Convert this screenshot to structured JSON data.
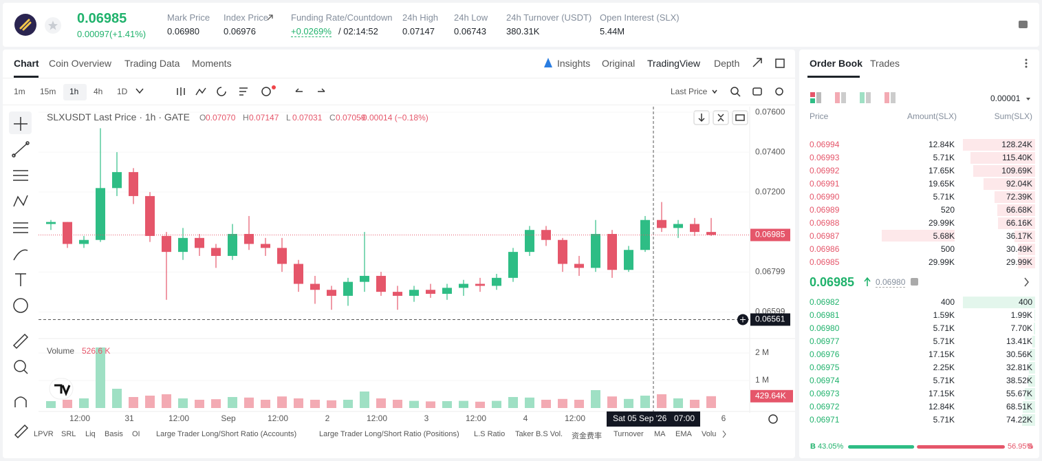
{
  "header": {
    "price": "0.06985",
    "change": "0.00097(+1.41%)",
    "stats": [
      {
        "label": "Mark Price",
        "value": "0.06980"
      },
      {
        "label": "Index Price",
        "value": "0.06976"
      },
      {
        "label": "Funding Rate/Countdown",
        "value": "+0.0269%",
        "extra": "/ 02:14:52"
      },
      {
        "label": "24h High",
        "value": "0.07147"
      },
      {
        "label": "24h Low",
        "value": "0.06743"
      },
      {
        "label": "24h Turnover (USDT)",
        "value": "380.31K"
      },
      {
        "label": "Open Interest (SLX)",
        "value": "5.44M"
      }
    ]
  },
  "tabs": [
    "Chart",
    "Coin Overview",
    "Trading Data",
    "Moments"
  ],
  "view_tabs": [
    "Insights",
    "Original",
    "TradingView",
    "Depth"
  ],
  "intervals": [
    "1m",
    "15m",
    "1h",
    "4h",
    "1D"
  ],
  "price_type": "Last Price",
  "legend": {
    "title": "SLXUSDT Last Price · 1h · GATE",
    "ohlc": [
      {
        "k": "O",
        "v": "0.07070"
      },
      {
        "k": "H",
        "v": "0.07147"
      },
      {
        "k": "L",
        "v": "0.07031"
      },
      {
        "k": "C",
        "v": "0.07059"
      }
    ],
    "change": "-0.00014 (−0.18%)",
    "volume_title": "Volume",
    "volume_value": "526.6 K"
  },
  "indicators": [
    "LPVR",
    "SRL",
    "Liq",
    "Basis",
    "OI",
    "Large Trader Long/Short Ratio (Accounts)",
    "Large Trader Long/Short Ratio (Positions)",
    "L.S Ratio",
    "Taker B.S Vol.",
    "资金费率",
    "Turnover",
    "MA",
    "EMA",
    "Volu"
  ],
  "chart_data": {
    "type": "candlestick",
    "up_color": "#2ebd85",
    "down_color": "#e5566a",
    "up_volume_color": "#9fe0c4",
    "down_volume_color": "#f3aab3",
    "open": [
      0.0704,
      0.0705,
      0.0694,
      0.0696,
      0.0722,
      0.073,
      0.0718,
      0.0698,
      0.069,
      0.0697,
      0.0692,
      0.0688,
      0.0699,
      0.0694,
      0.0692,
      0.0684,
      0.0674,
      0.0671,
      0.0668,
      0.0675,
      0.0678,
      0.067,
      0.0668,
      0.0671,
      0.0669,
      0.0672,
      0.0674,
      0.0673,
      0.0677,
      0.069,
      0.0701,
      0.0696,
      0.0684,
      0.0682,
      0.0699,
      0.0681,
      0.0691,
      0.0706,
      0.0702,
      0.0704,
      0.07
    ],
    "high": [
      0.0706,
      0.0705,
      0.0698,
      0.0752,
      0.074,
      0.0732,
      0.072,
      0.07,
      0.0702,
      0.0699,
      0.0694,
      0.0704,
      0.0708,
      0.0697,
      0.0697,
      0.0686,
      0.0678,
      0.0673,
      0.0677,
      0.07,
      0.068,
      0.0673,
      0.0673,
      0.0674,
      0.0674,
      0.0676,
      0.0677,
      0.0679,
      0.0692,
      0.0703,
      0.0703,
      0.0697,
      0.0688,
      0.0706,
      0.0701,
      0.0693,
      0.0708,
      0.0715,
      0.0706,
      0.0707,
      0.0707
    ],
    "low": [
      0.0701,
      0.0692,
      0.0692,
      0.0695,
      0.0718,
      0.0714,
      0.0695,
      0.0666,
      0.0686,
      0.0688,
      0.0682,
      0.0686,
      0.0691,
      0.0688,
      0.068,
      0.067,
      0.0664,
      0.0661,
      0.0663,
      0.067,
      0.0668,
      0.0661,
      0.0665,
      0.0667,
      0.0666,
      0.0668,
      0.067,
      0.0671,
      0.0675,
      0.0688,
      0.0693,
      0.068,
      0.0678,
      0.068,
      0.0677,
      0.068,
      0.069,
      0.07,
      0.0697,
      0.0698,
      0.0698
    ],
    "close": [
      0.0705,
      0.0694,
      0.0696,
      0.0722,
      0.073,
      0.0718,
      0.0698,
      0.069,
      0.0697,
      0.0692,
      0.0688,
      0.0699,
      0.0694,
      0.0692,
      0.0684,
      0.0674,
      0.0671,
      0.0668,
      0.0675,
      0.0678,
      0.067,
      0.0668,
      0.0671,
      0.0669,
      0.0672,
      0.0674,
      0.0673,
      0.0677,
      0.069,
      0.0701,
      0.0696,
      0.0684,
      0.0682,
      0.0699,
      0.0681,
      0.0691,
      0.0706,
      0.0702,
      0.0704,
      0.07,
      0.06985
    ],
    "volume": [
      250000,
      300000,
      350000,
      2200000,
      700000,
      400000,
      450000,
      500000,
      350000,
      300000,
      320000,
      400000,
      380000,
      300000,
      420000,
      350000,
      300000,
      280000,
      300000,
      600000,
      350000,
      300000,
      260000,
      240000,
      250000,
      260000,
      230000,
      260000,
      400000,
      380000,
      300000,
      330000,
      300000,
      650000,
      420000,
      330000,
      450000,
      500000,
      350000,
      300000,
      429640
    ],
    "ylim": [
      0.06466,
      0.07628
    ],
    "yticks": [
      {
        "value": 0.076,
        "label": "0.07600"
      },
      {
        "value": 0.074,
        "label": "0.07400"
      },
      {
        "value": 0.072,
        "label": "0.07200"
      },
      0.06799,
      0.06599
    ],
    "volume_lim": [
      0,
      2400000
    ],
    "volume_ticks": [
      {
        "value": 2000000,
        "label": "2 M"
      },
      {
        "value": 1000000,
        "label": "1 M"
      }
    ],
    "xticks": [
      "12:00",
      "31",
      "12:00",
      "Sep",
      "12:00",
      "2",
      "12:00",
      "3",
      "12:00",
      "4",
      "12:00",
      null,
      null,
      "6"
    ],
    "last_price": 0.06985,
    "crosshair_price": 0.06561,
    "current_volume": {
      "value": 429640,
      "label": "429.64K"
    },
    "crosshair_date": "Sat 05 Sep '26",
    "crosshair_time": "07:00"
  },
  "order_book": {
    "tabs": [
      "Order Book",
      "Trades"
    ],
    "precision": "0.00001",
    "columns": [
      "Price",
      "Amount(SLX)",
      "Sum(SLX)"
    ],
    "asks": [
      [
        "0.06994",
        "12.84K",
        "128.24K"
      ],
      [
        "0.06993",
        "5.71K",
        "115.40K"
      ],
      [
        "0.06992",
        "17.65K",
        "109.69K"
      ],
      [
        "0.06991",
        "19.65K",
        "92.04K"
      ],
      [
        "0.06990",
        "5.71K",
        "72.39K"
      ],
      [
        "0.06989",
        "520",
        "66.68K"
      ],
      [
        "0.06988",
        "29.99K",
        "66.16K"
      ],
      [
        "0.06987",
        "5.68K",
        "36.17K"
      ],
      [
        "0.06986",
        "500",
        "30.49K"
      ],
      [
        "0.06985",
        "29.99K",
        "29.99K"
      ]
    ],
    "mid_price": "0.06985",
    "mark_price": "0.06980",
    "bids": [
      [
        "0.06982",
        "400",
        "400"
      ],
      [
        "0.06981",
        "1.59K",
        "1.99K"
      ],
      [
        "0.06980",
        "5.71K",
        "7.70K"
      ],
      [
        "0.06977",
        "5.71K",
        "13.41K"
      ],
      [
        "0.06976",
        "17.15K",
        "30.56K"
      ],
      [
        "0.06975",
        "2.25K",
        "32.81K"
      ],
      [
        "0.06974",
        "5.71K",
        "38.52K"
      ],
      [
        "0.06973",
        "17.15K",
        "55.67K"
      ],
      [
        "0.06972",
        "12.84K",
        "68.51K"
      ],
      [
        "0.06971",
        "5.71K",
        "74.22K"
      ]
    ],
    "buy_label": "B",
    "buy_ratio": "43.05%",
    "sell_ratio": "56.95%",
    "sell_label": "S"
  }
}
